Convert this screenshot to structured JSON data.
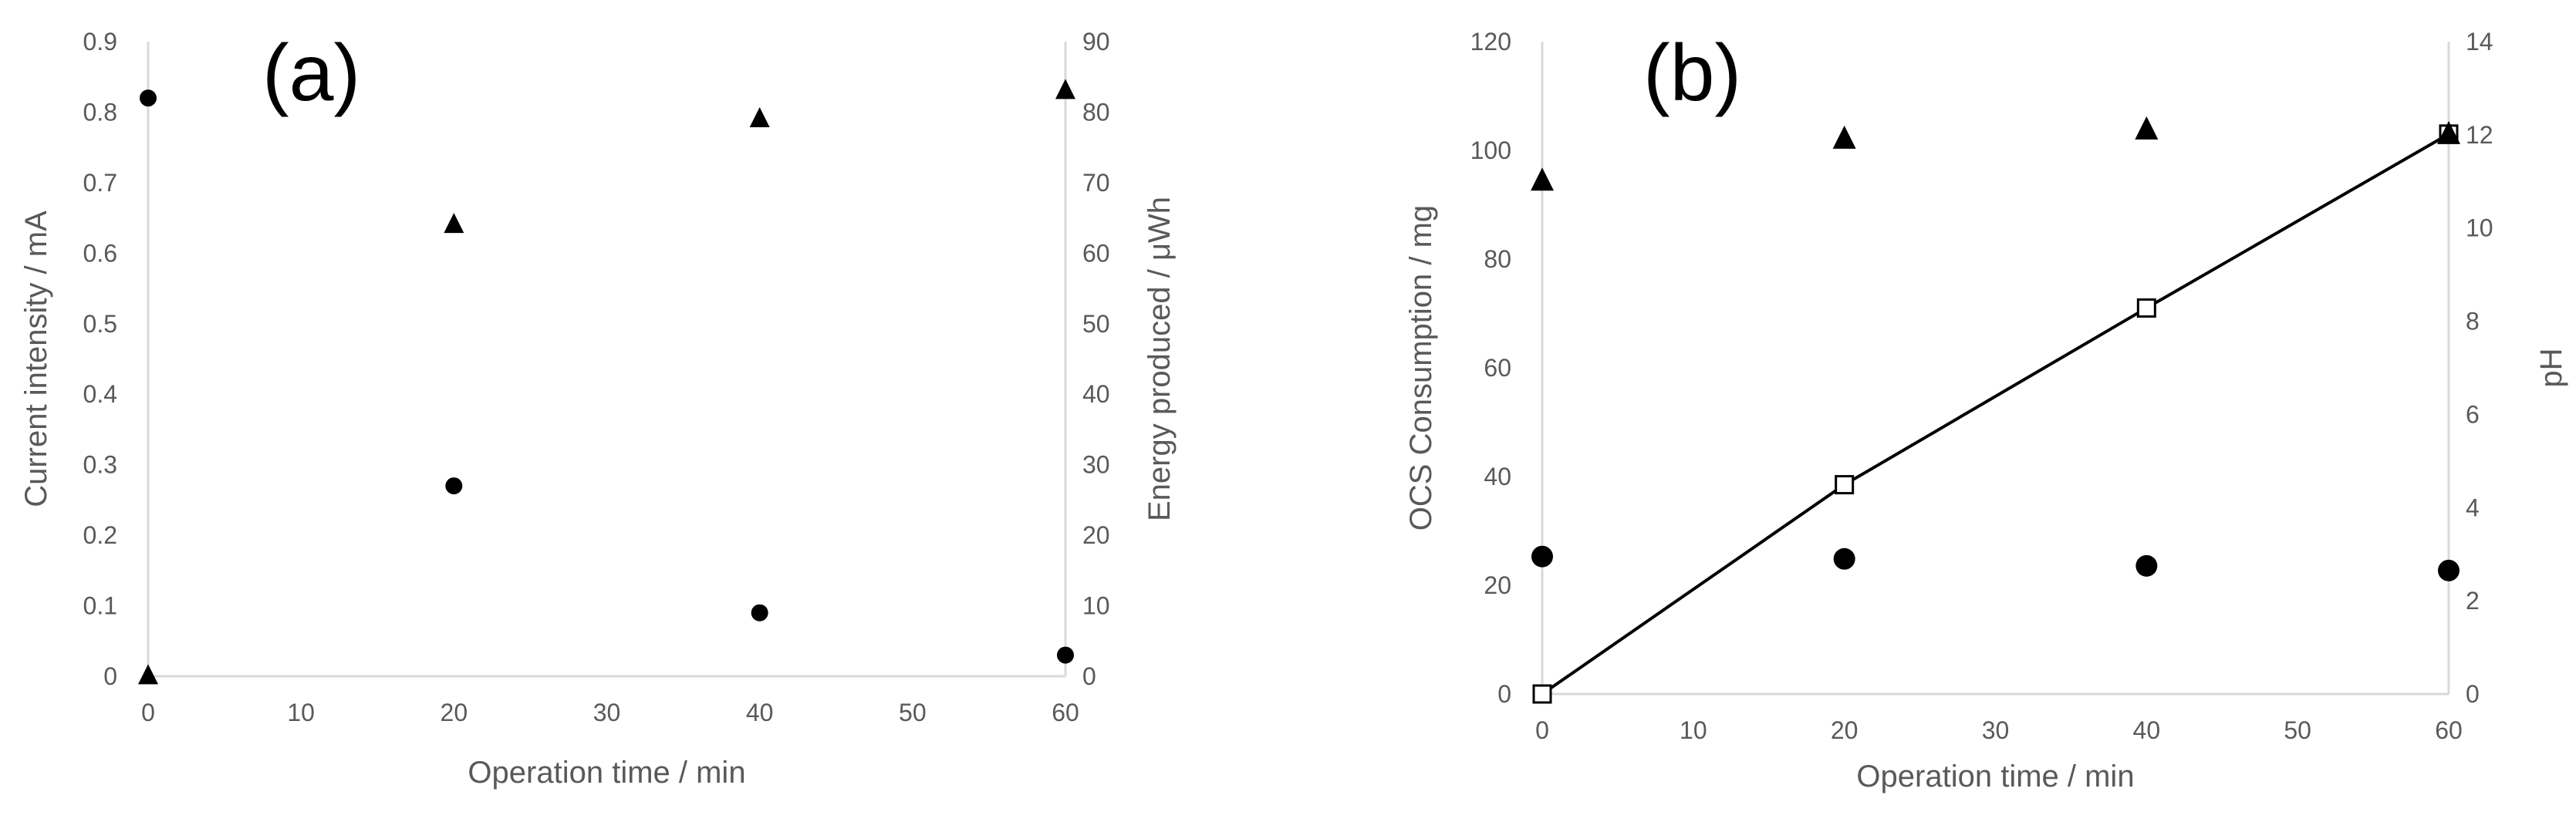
{
  "chart_data": [
    {
      "type": "scatter",
      "panel_label": "(a)",
      "xlabel": "Operation time / min",
      "ylabel_left": "Current intensity / mA",
      "ylabel_right": "Energy produced / μWh",
      "xlim": [
        0,
        60
      ],
      "ylim_left": [
        0,
        0.9
      ],
      "ylim_right": [
        0,
        90
      ],
      "x_ticks": [
        "0",
        "10",
        "20",
        "30",
        "40",
        "50",
        "60"
      ],
      "y_left_ticks": [
        "0",
        "0.1",
        "0.2",
        "0.3",
        "0.4",
        "0.5",
        "0.6",
        "0.7",
        "0.8",
        "0.9"
      ],
      "y_right_ticks": [
        "0",
        "10",
        "20",
        "30",
        "40",
        "50",
        "60",
        "70",
        "80",
        "90"
      ],
      "grid": false,
      "series": [
        {
          "axis": "left",
          "marker": "circle",
          "color": "#000000",
          "points": [
            [
              0,
              0.82
            ],
            [
              20,
              0.27
            ],
            [
              40,
              0.09
            ],
            [
              60,
              0.03
            ]
          ]
        },
        {
          "axis": "right",
          "marker": "triangle",
          "color": "#000000",
          "points": [
            [
              0,
              0
            ],
            [
              20,
              64
            ],
            [
              40,
              79
            ],
            [
              60,
              83
            ]
          ]
        }
      ]
    },
    {
      "type": "scatter",
      "panel_label": "(b)",
      "xlabel": "Operation time / min",
      "ylabel_left": "OCS Consumption / mg",
      "ylabel_right": "pH",
      "xlim": [
        0,
        60
      ],
      "ylim_left": [
        0,
        120
      ],
      "ylim_right": [
        0,
        14
      ],
      "x_ticks": [
        "0",
        "10",
        "20",
        "30",
        "40",
        "50",
        "60"
      ],
      "y_left_ticks": [
        "0",
        "20",
        "40",
        "60",
        "80",
        "100",
        "120"
      ],
      "y_right_ticks": [
        "0",
        "2",
        "4",
        "6",
        "8",
        "10",
        "12",
        "14"
      ],
      "grid": false,
      "series": [
        {
          "axis": "left",
          "marker": "open-square",
          "line": true,
          "color": "#000000",
          "points": [
            [
              0,
              0
            ],
            [
              20,
              38.5
            ],
            [
              40,
              71
            ],
            [
              60,
              103
            ]
          ]
        },
        {
          "axis": "right",
          "marker": "triangle",
          "color": "#000000",
          "points": [
            [
              0,
              11
            ],
            [
              20,
              11.9
            ],
            [
              40,
              12.1
            ],
            [
              60,
              12
            ]
          ]
        },
        {
          "axis": "right",
          "marker": "circle",
          "color": "#000000",
          "points": [
            [
              0,
              2.95
            ],
            [
              20,
              2.9
            ],
            [
              40,
              2.75
            ],
            [
              60,
              2.65
            ]
          ]
        }
      ]
    }
  ]
}
